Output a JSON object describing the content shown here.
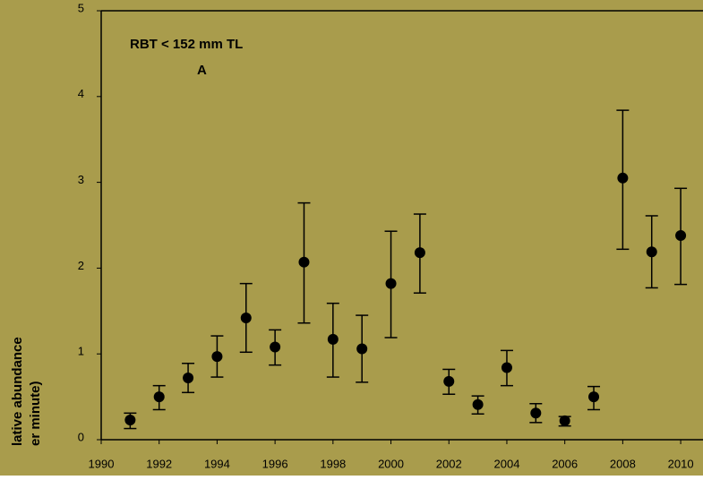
{
  "chart_data": {
    "type": "scatter",
    "annotations": [
      "RBT  < 152 mm TL",
      "A"
    ],
    "y_label_lines": [
      "lative abundance",
      "er minute)"
    ],
    "x": [
      1991,
      1992,
      1993,
      1994,
      1995,
      1996,
      1997,
      1998,
      1999,
      2000,
      2001,
      2002,
      2003,
      2004,
      2005,
      2006,
      2007,
      2008,
      2009,
      2010
    ],
    "values": [
      0.23,
      0.5,
      0.72,
      0.97,
      1.42,
      1.08,
      2.07,
      1.17,
      1.06,
      1.82,
      2.18,
      0.68,
      0.41,
      0.84,
      0.31,
      0.22,
      0.5,
      3.05,
      2.19,
      2.38
    ],
    "upper": [
      0.31,
      0.63,
      0.89,
      1.21,
      1.82,
      1.28,
      2.76,
      1.59,
      1.45,
      2.43,
      2.63,
      0.82,
      0.51,
      1.04,
      0.42,
      0.27,
      0.62,
      3.84,
      2.61,
      2.93
    ],
    "lower": [
      0.13,
      0.35,
      0.55,
      0.73,
      1.02,
      0.87,
      1.36,
      0.73,
      0.67,
      1.19,
      1.71,
      0.53,
      0.3,
      0.63,
      0.2,
      0.16,
      0.35,
      2.22,
      1.77,
      1.81
    ],
    "color": "#000000",
    "background": "#a99c4c",
    "xlim": [
      1990,
      2010.77
    ],
    "xticks": [
      1990,
      1992,
      1994,
      1996,
      1998,
      2000,
      2002,
      2004,
      2006,
      2008,
      2010
    ],
    "ylim": [
      0,
      5
    ],
    "yticks": [
      0,
      1,
      2,
      3,
      4,
      5
    ]
  }
}
